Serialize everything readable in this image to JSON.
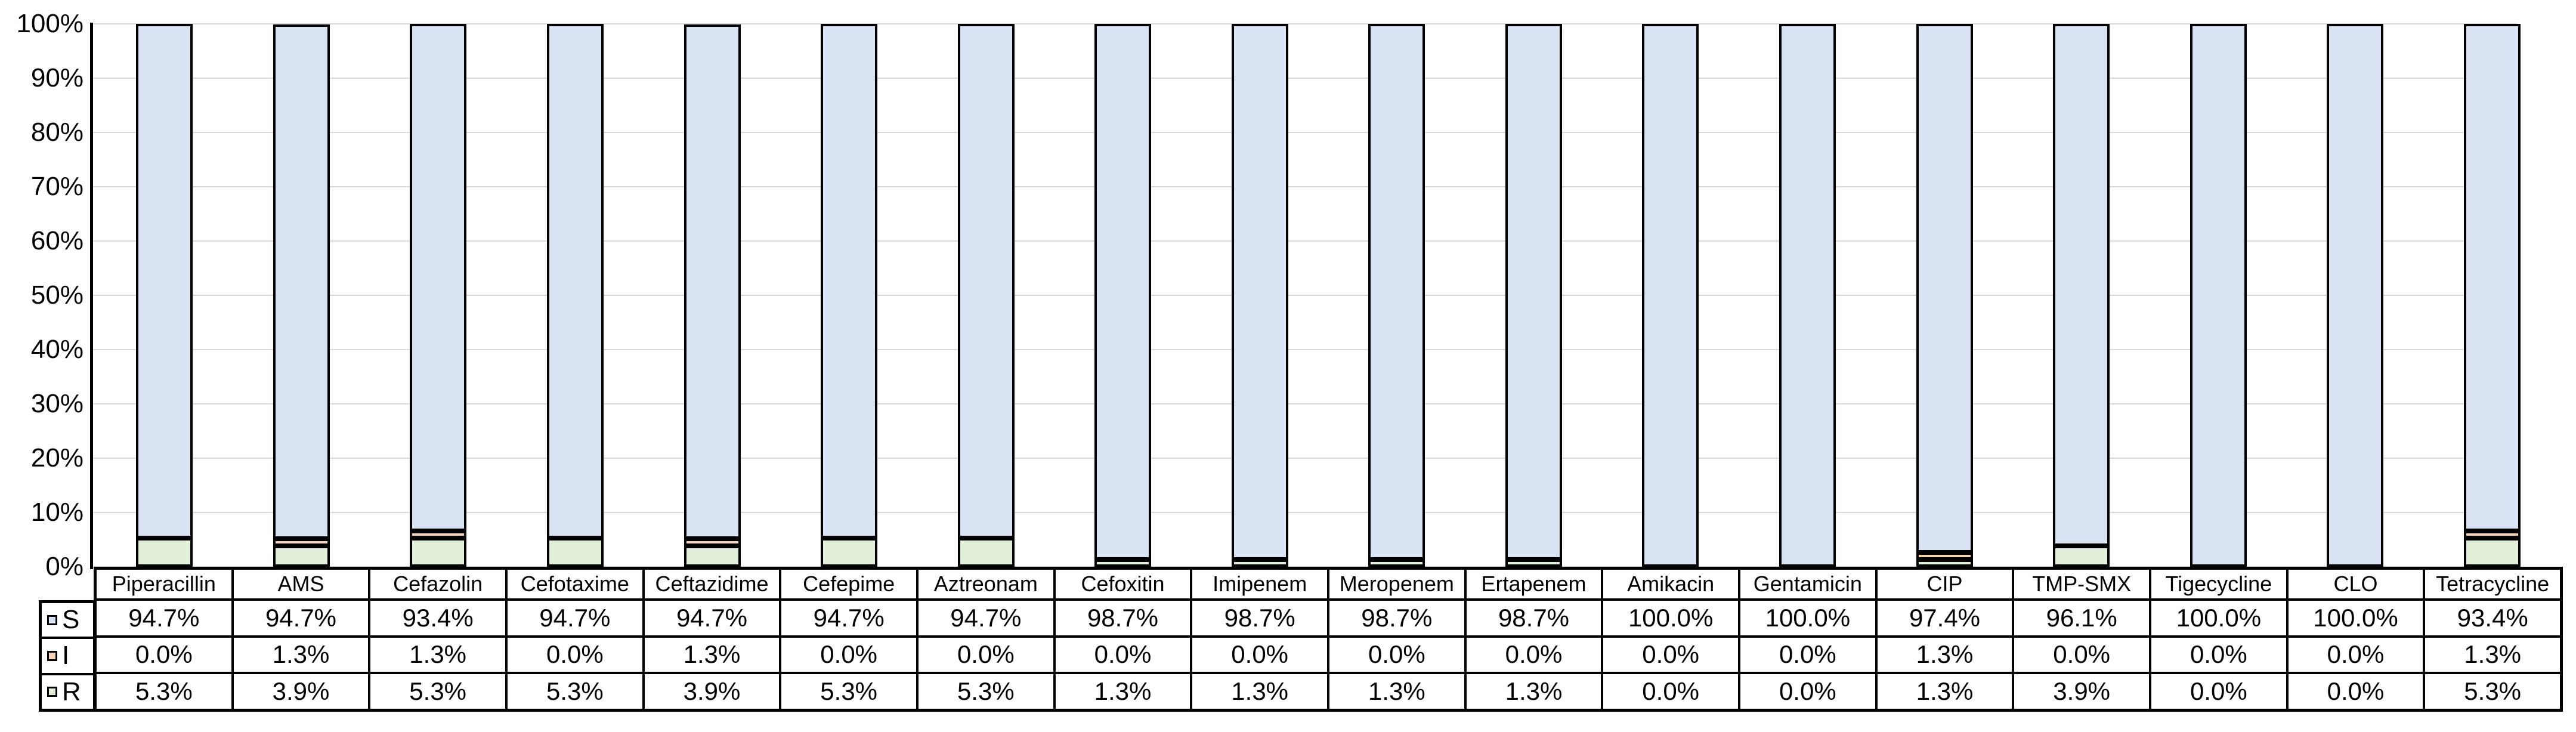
{
  "chart_data": {
    "type": "bar",
    "stacked": true,
    "title": "",
    "xlabel": "",
    "ylabel": "",
    "ylim": [
      0,
      100
    ],
    "y_tick_step": 10,
    "y_tick_suffix": "%",
    "grid": true,
    "legend_position": "table-left-keys",
    "categories": [
      "Piperacillin",
      "AMS",
      "Cefazolin",
      "Cefotaxime",
      "Ceftazidime",
      "Cefepime",
      "Aztreonam",
      "Cefoxitin",
      "Imipenem",
      "Meropenem",
      "Ertapenem",
      "Amikacin",
      "Gentamicin",
      "CIP",
      "TMP-SMX",
      "Tigecycline",
      "CLO",
      "Tetracycline"
    ],
    "series": [
      {
        "name": "S",
        "color": "#dae3f3",
        "values": [
          94.7,
          94.7,
          93.4,
          94.7,
          94.7,
          94.7,
          94.7,
          98.7,
          98.7,
          98.7,
          98.7,
          100.0,
          100.0,
          97.4,
          96.1,
          100.0,
          100.0,
          93.4
        ]
      },
      {
        "name": "I",
        "color": "#f8d2b8",
        "values": [
          0.0,
          1.3,
          1.3,
          0.0,
          1.3,
          0.0,
          0.0,
          0.0,
          0.0,
          0.0,
          0.0,
          0.0,
          0.0,
          1.3,
          0.0,
          0.0,
          0.0,
          1.3
        ]
      },
      {
        "name": "R",
        "color": "#e2efd9",
        "values": [
          5.3,
          3.9,
          5.3,
          5.3,
          3.9,
          5.3,
          5.3,
          1.3,
          1.3,
          1.3,
          1.3,
          0.0,
          0.0,
          1.3,
          3.9,
          0.0,
          0.0,
          5.3
        ]
      }
    ],
    "value_format": "one-decimal-percent"
  },
  "colors": {
    "background": "#ffffff",
    "bar_border": "#000000",
    "table_border": "#000000",
    "gridline": "#d9d9d9",
    "axis": "#000000",
    "text": "#000000"
  }
}
